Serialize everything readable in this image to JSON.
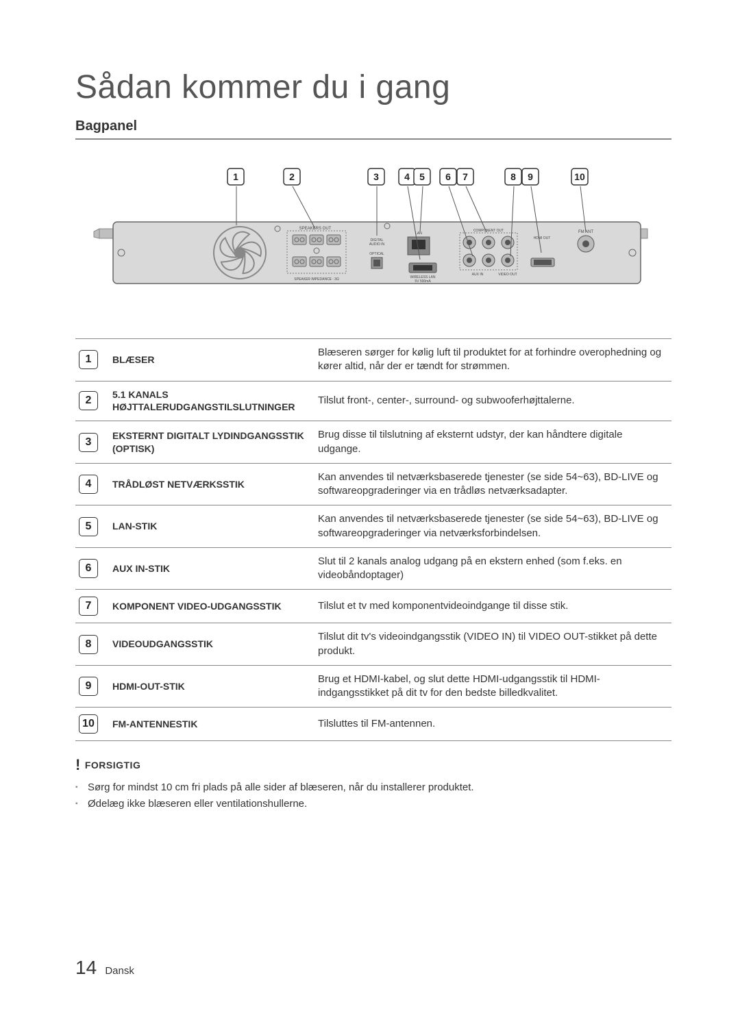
{
  "title": "Sådan kommer du i gang",
  "subtitle": "Bagpanel",
  "diagram": {
    "callouts": [
      "1",
      "2",
      "3",
      "4",
      "5",
      "6",
      "7",
      "8",
      "9",
      "10"
    ],
    "labels": {
      "speakers_out": "SPEAKERS OUT",
      "impedance": "SPEAKER IMPEDANCE : 3Ω",
      "digital_audio": "DIGITAL\nAUDIO IN",
      "optical": "OPTICAL",
      "lan": "LAN",
      "wireless_lan": "WIRELESS LAN\n5V 500mA",
      "component_out": "COMPONENT OUT",
      "hdmi_out": "HDMI OUT",
      "fm_ant": "FM ANT",
      "aux_in": "AUX IN",
      "video_out": "VIDEO OUT"
    },
    "colors": {
      "panel_fill": "#d9d9d9",
      "panel_stroke": "#666",
      "fan_stroke": "#888",
      "text": "#444"
    }
  },
  "rows": [
    {
      "n": "1",
      "label": "BLÆSER",
      "desc": "Blæseren sørger for kølig luft til produktet for at forhindre overophedning og kører altid, når der er tændt for strømmen."
    },
    {
      "n": "2",
      "label": "5.1 KANALS HØJTTALERUDGANGSTILSLUTNINGER",
      "desc": "Tilslut front-, center-, surround- og subwooferhøjttalerne."
    },
    {
      "n": "3",
      "label": "EKSTERNT DIGITALT LYDINDGANGSSTIK (OPTISK)",
      "desc": "Brug disse til tilslutning af eksternt udstyr, der kan håndtere digitale udgange."
    },
    {
      "n": "4",
      "label": "TRÅDLØST NETVÆRKSSTIK",
      "desc": "Kan anvendes til netværksbaserede tjenester (se side 54~63), BD-LIVE og softwareopgraderinger via en trådløs netværksadapter."
    },
    {
      "n": "5",
      "label": "LAN-STIK",
      "desc": "Kan anvendes til netværksbaserede tjenester (se side 54~63), BD-LIVE og softwareopgraderinger via netværksforbindelsen."
    },
    {
      "n": "6",
      "label": "AUX IN-STIK",
      "desc": "Slut til 2 kanals analog udgang på en ekstern enhed (som f.eks. en videobåndoptager)"
    },
    {
      "n": "7",
      "label": "KOMPONENT VIDEO-UDGANGSSTIK",
      "desc": "Tilslut et tv med komponentvideoindgange til disse stik."
    },
    {
      "n": "8",
      "label": "VIDEOUDGANGSSTIK",
      "desc": "Tilslut dit tv's videoindgangsstik (VIDEO IN) til VIDEO OUT-stikket på dette produkt."
    },
    {
      "n": "9",
      "label": "HDMI-OUT-STIK",
      "desc": "Brug et HDMI-kabel, og slut dette HDMI-udgangsstik til HDMI-indgangsstikket på dit tv for den bedste billedkvalitet."
    },
    {
      "n": "10",
      "label": "FM-ANTENNESTIK",
      "desc": "Tilsluttes til FM-antennen."
    }
  ],
  "caution": {
    "heading": "FORSIGTIG",
    "items": [
      "Sørg for mindst 10 cm fri plads på alle sider af blæseren, når du installerer produktet.",
      "Ødelæg ikke blæseren eller ventilationshullerne."
    ]
  },
  "footer": {
    "page": "14",
    "lang": "Dansk"
  }
}
